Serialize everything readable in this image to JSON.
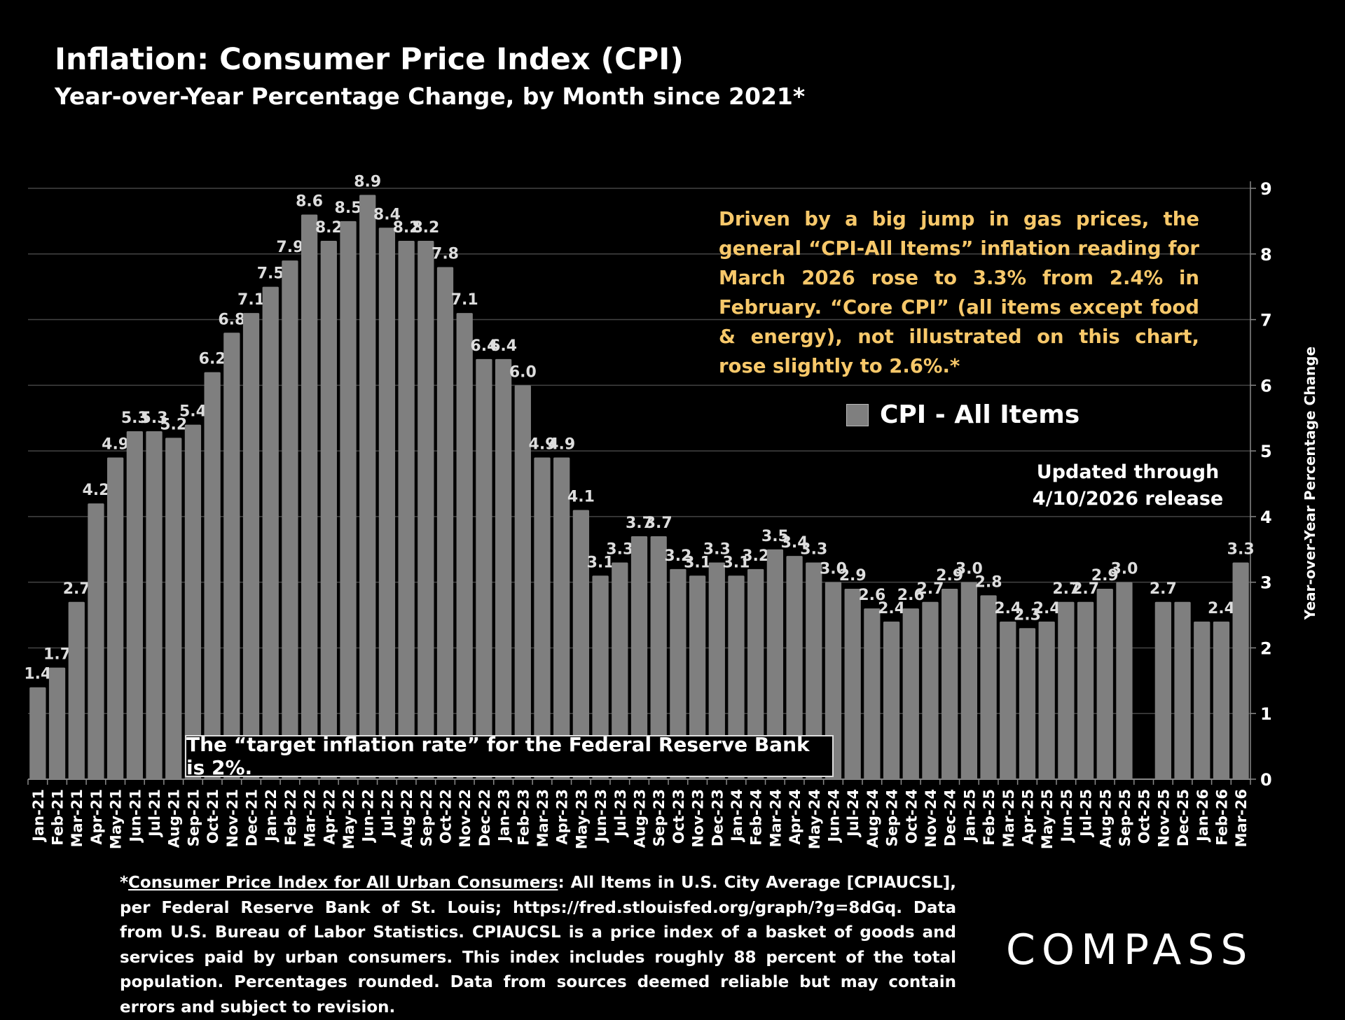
{
  "header": {
    "title": "Inflation: Consumer Price Index (CPI)",
    "subtitle": "Year-over-Year Percentage Change, by Month since 2021*"
  },
  "chart_data": {
    "type": "bar",
    "categories": [
      "Jan-21",
      "Feb-21",
      "Mar-21",
      "Apr-21",
      "May-21",
      "Jun-21",
      "Jul-21",
      "Aug-21",
      "Sep-21",
      "Oct-21",
      "Nov-21",
      "Dec-21",
      "Jan-22",
      "Feb-22",
      "Mar-22",
      "Apr-22",
      "May-22",
      "Jun-22",
      "Jul-22",
      "Aug-22",
      "Sep-22",
      "Oct-22",
      "Nov-22",
      "Dec-22",
      "Jan-23",
      "Feb-23",
      "Mar-23",
      "Apr-23",
      "May-23",
      "Jun-23",
      "Jul-23",
      "Aug-23",
      "Sep-23",
      "Oct-23",
      "Nov-23",
      "Dec-23",
      "Jan-24",
      "Feb-24",
      "Mar-24",
      "Apr-24",
      "May-24",
      "Jun-24",
      "Jul-24",
      "Aug-24",
      "Sep-24",
      "Oct-24",
      "Nov-24",
      "Dec-24",
      "Jan-25",
      "Feb-25",
      "Mar-25",
      "Apr-25",
      "May-25",
      "Jun-25",
      "Jul-25",
      "Aug-25",
      "Sep-25",
      "Oct-25",
      "Nov-25",
      "Dec-25",
      "Jan-26",
      "Feb-26",
      "Mar-26"
    ],
    "series": [
      {
        "name": "CPI - All Items",
        "values": [
          1.4,
          1.7,
          2.7,
          4.2,
          4.9,
          5.3,
          5.3,
          5.2,
          5.4,
          6.2,
          6.8,
          7.1,
          7.5,
          7.9,
          8.6,
          8.2,
          8.5,
          8.9,
          8.4,
          8.2,
          8.2,
          7.8,
          7.1,
          6.4,
          6.4,
          6.0,
          4.9,
          4.9,
          4.1,
          3.1,
          3.3,
          3.7,
          3.7,
          3.2,
          3.1,
          3.3,
          3.1,
          3.2,
          3.5,
          3.4,
          3.3,
          3.0,
          2.9,
          2.6,
          2.4,
          2.6,
          2.7,
          2.9,
          3.0,
          2.8,
          2.4,
          2.3,
          2.4,
          2.7,
          2.7,
          2.9,
          3.0,
          null,
          2.7,
          2.7,
          2.4,
          2.4,
          3.3
        ],
        "data_labels_shown": [
          true,
          true,
          true,
          true,
          true,
          true,
          true,
          true,
          true,
          true,
          true,
          true,
          true,
          true,
          true,
          true,
          true,
          true,
          true,
          true,
          true,
          true,
          true,
          true,
          true,
          true,
          true,
          true,
          true,
          true,
          true,
          true,
          true,
          true,
          true,
          true,
          true,
          true,
          true,
          true,
          true,
          true,
          true,
          true,
          true,
          true,
          true,
          true,
          true,
          true,
          true,
          true,
          true,
          true,
          true,
          true,
          true,
          false,
          true,
          false,
          false,
          true,
          true
        ]
      }
    ],
    "ylabel": "Year-over-Year Percentage Change",
    "ylim": [
      0,
      9
    ],
    "yticks": [
      "0",
      "1",
      "2",
      "3",
      "4",
      "5",
      "6",
      "7",
      "8",
      "9"
    ],
    "y_axis_side": "right",
    "grid": true,
    "legend": "center-right",
    "bar_color": "#7f7f7f",
    "background": "#000000"
  },
  "annotation": "Driven by a big jump in gas prices, the general “CPI-All Items” inflation reading for March 2026 rose to 3.3% from 2.4% in February. “Core CPI” (all items except food & energy), not illustrated on this chart, rose slightly to 2.6%.*",
  "annotation_color": "#f7c86a",
  "legend_label": "CPI - All Items",
  "updated": {
    "line1": "Updated through",
    "line2": "4/10/2026 release"
  },
  "target_note": "The “target inflation rate” for the Federal Reserve Bank is 2%.",
  "footnote": {
    "link_text": "Consumer Price Index for All Urban Consumers",
    "prefix": "*",
    "body": ": All Items in U.S. City Average [CPIAUCSL], per Federal Reserve Bank of St. Louis; https://fred.stlouisfed.org/graph/?g=8dGq. Data from U.S. Bureau of Labor Statistics. CPIAUCSL is a price index of a basket of goods and services paid by urban consumers. This index includes roughly 88 percent of the total population. Percentages rounded. Data from sources deemed reliable but may contain errors and subject to revision."
  },
  "logo": "COMPASS"
}
